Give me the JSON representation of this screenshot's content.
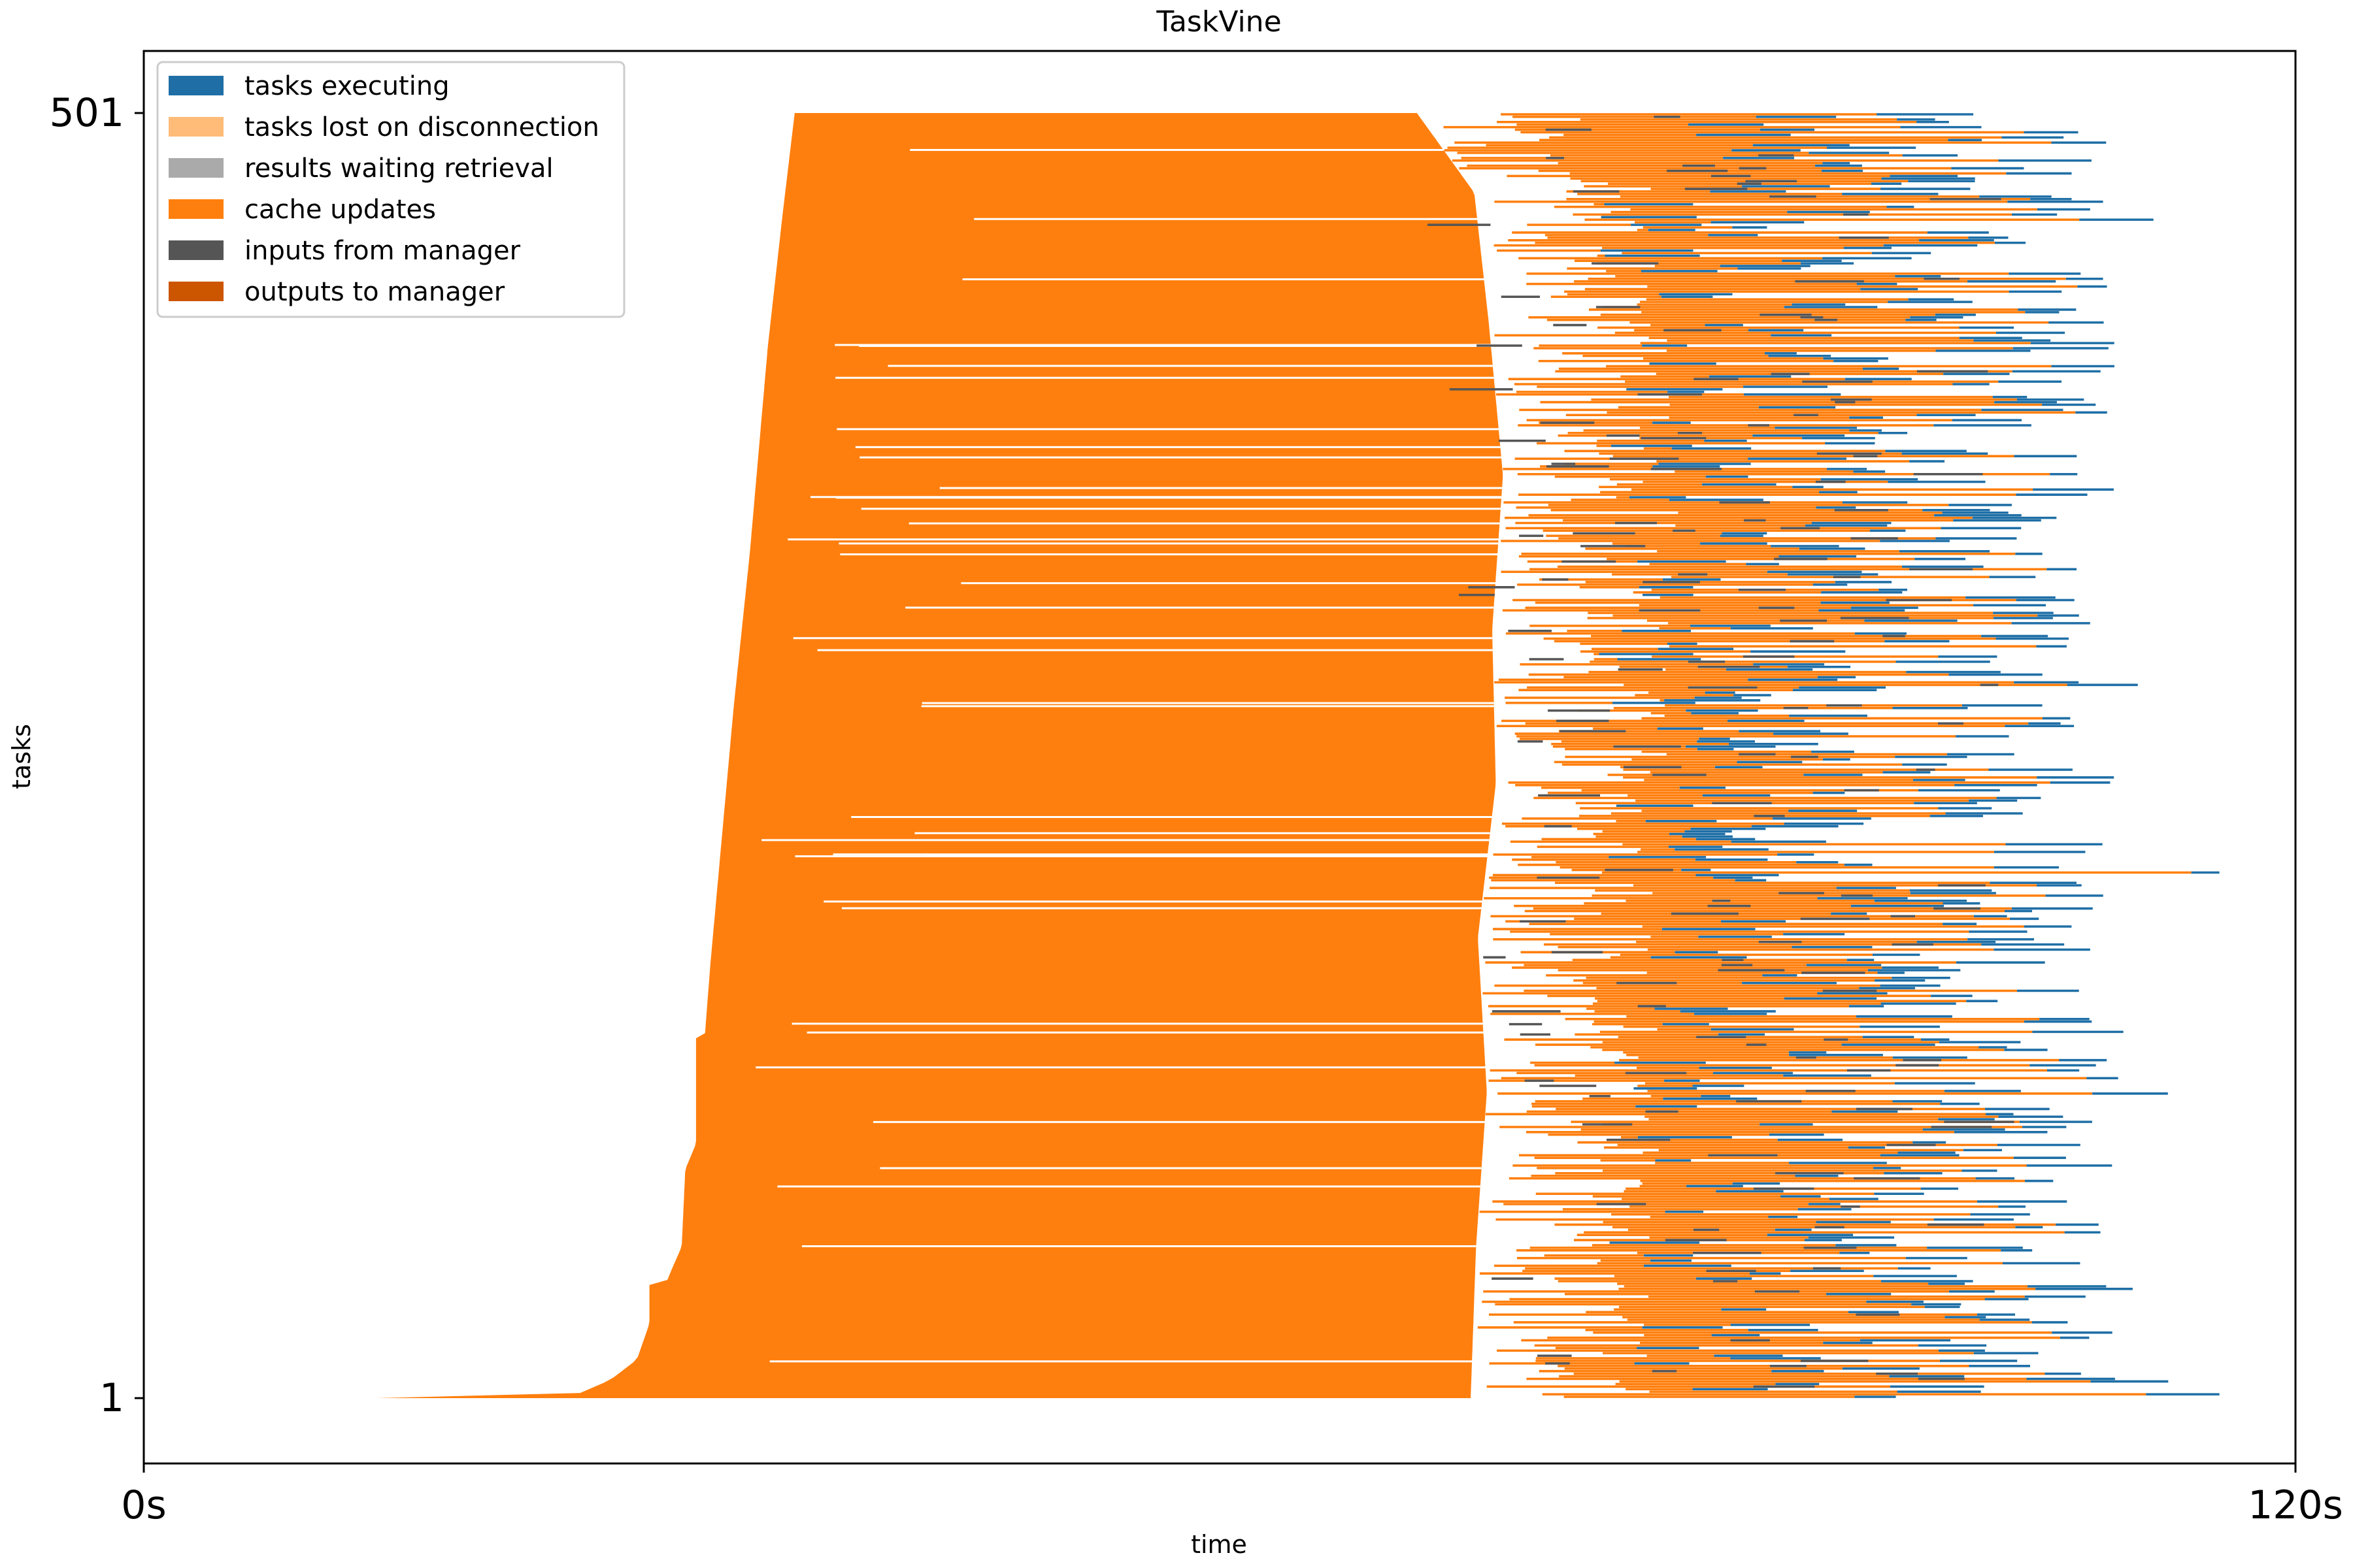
{
  "chart_data": {
    "type": "timeline",
    "title": "TaskVine",
    "xlabel": "time",
    "ylabel": "tasks",
    "xlim": [
      0,
      120
    ],
    "ylim": [
      1,
      501
    ],
    "x_ticks": [
      {
        "value": 0,
        "label": "0s"
      },
      {
        "value": 120,
        "label": "120s"
      }
    ],
    "y_ticks": [
      {
        "value": 1,
        "label": "1"
      },
      {
        "value": 501,
        "label": "501"
      }
    ],
    "legend": {
      "placement": "top-left",
      "entries": [
        {
          "label": "tasks executing",
          "color": "#1f6fa6"
        },
        {
          "label": "tasks lost on disconnection",
          "color": "#ffbb78"
        },
        {
          "label": "results waiting retrieval",
          "color": "#aaaaaa"
        },
        {
          "label": "cache updates",
          "color": "#ff7f0e"
        },
        {
          "label": "inputs from manager",
          "color": "#555555"
        },
        {
          "label": "outputs to manager",
          "color": "#cc5500"
        }
      ]
    },
    "cache_region": {
      "color": "#ff7f0e",
      "start_profile": [
        [
          1,
          13.0
        ],
        [
          2,
          24.0
        ],
        [
          8,
          26.0
        ],
        [
          16,
          27.5
        ],
        [
          30,
          28.2
        ],
        [
          46,
          28.2
        ],
        [
          47,
          29.2
        ],
        [
          52,
          29.5
        ],
        [
          60,
          30.0
        ],
        [
          90,
          30.2
        ],
        [
          100,
          30.8
        ],
        [
          142,
          30.8
        ],
        [
          143,
          31.3
        ],
        [
          170,
          31.6
        ],
        [
          270,
          32.9
        ],
        [
          330,
          33.8
        ],
        [
          410,
          34.8
        ],
        [
          460,
          35.6
        ],
        [
          501,
          36.3
        ]
      ],
      "end_profile": [
        [
          1,
          74.0
        ],
        [
          60,
          74.3
        ],
        [
          120,
          74.9
        ],
        [
          180,
          74.4
        ],
        [
          240,
          75.4
        ],
        [
          300,
          75.2
        ],
        [
          360,
          75.8
        ],
        [
          420,
          75.0
        ],
        [
          470,
          74.2
        ],
        [
          501,
          71.0
        ]
      ]
    },
    "execution_segments": {
      "color": "#1f6fa6",
      "count": 500,
      "row_start": 1,
      "row_end": 501,
      "end_range": [
        77.0,
        120.0
      ]
    }
  }
}
